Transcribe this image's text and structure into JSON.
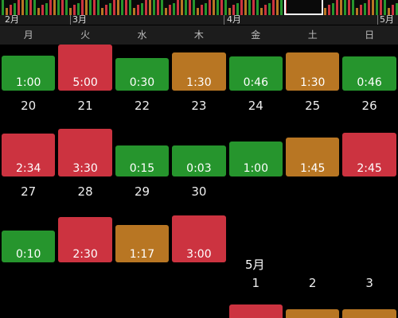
{
  "timeline": {
    "months": [
      {
        "label": "2月"
      },
      {
        "label": "3月"
      },
      {
        "label": "4月"
      },
      {
        "label": "5月"
      }
    ]
  },
  "weekdays": [
    "月",
    "火",
    "水",
    "木",
    "金",
    "土",
    "日"
  ],
  "weeks": [
    {
      "days": [
        {
          "date": "",
          "value": "1:00",
          "status": "good"
        },
        {
          "date": "",
          "value": "5:00",
          "status": "bad"
        },
        {
          "date": "",
          "value": "0:30",
          "status": "good"
        },
        {
          "date": "",
          "value": "1:30",
          "status": "warn"
        },
        {
          "date": "",
          "value": "0:46",
          "status": "good"
        },
        {
          "date": "",
          "value": "1:30",
          "status": "warn"
        },
        {
          "date": "",
          "value": "0:46",
          "status": "good"
        }
      ]
    },
    {
      "days": [
        {
          "date": "20",
          "value": "2:34",
          "status": "bad"
        },
        {
          "date": "21",
          "value": "3:30",
          "status": "bad"
        },
        {
          "date": "22",
          "value": "0:15",
          "status": "good"
        },
        {
          "date": "23",
          "value": "0:03",
          "status": "good"
        },
        {
          "date": "24",
          "value": "1:00",
          "status": "good"
        },
        {
          "date": "25",
          "value": "1:45",
          "status": "warn"
        },
        {
          "date": "26",
          "value": "2:45",
          "status": "bad"
        }
      ]
    },
    {
      "days": [
        {
          "date": "27",
          "value": "0:10",
          "status": "good"
        },
        {
          "date": "28",
          "value": "2:30",
          "status": "bad"
        },
        {
          "date": "29",
          "value": "1:17",
          "status": "warn"
        },
        {
          "date": "30",
          "value": "3:00",
          "status": "bad"
        }
      ]
    }
  ],
  "next_month": {
    "label": "5月",
    "dates": [
      "1",
      "2",
      "3"
    ]
  },
  "colors": {
    "good": "#26952d",
    "bad": "#cc3340",
    "warn": "#b87623"
  }
}
